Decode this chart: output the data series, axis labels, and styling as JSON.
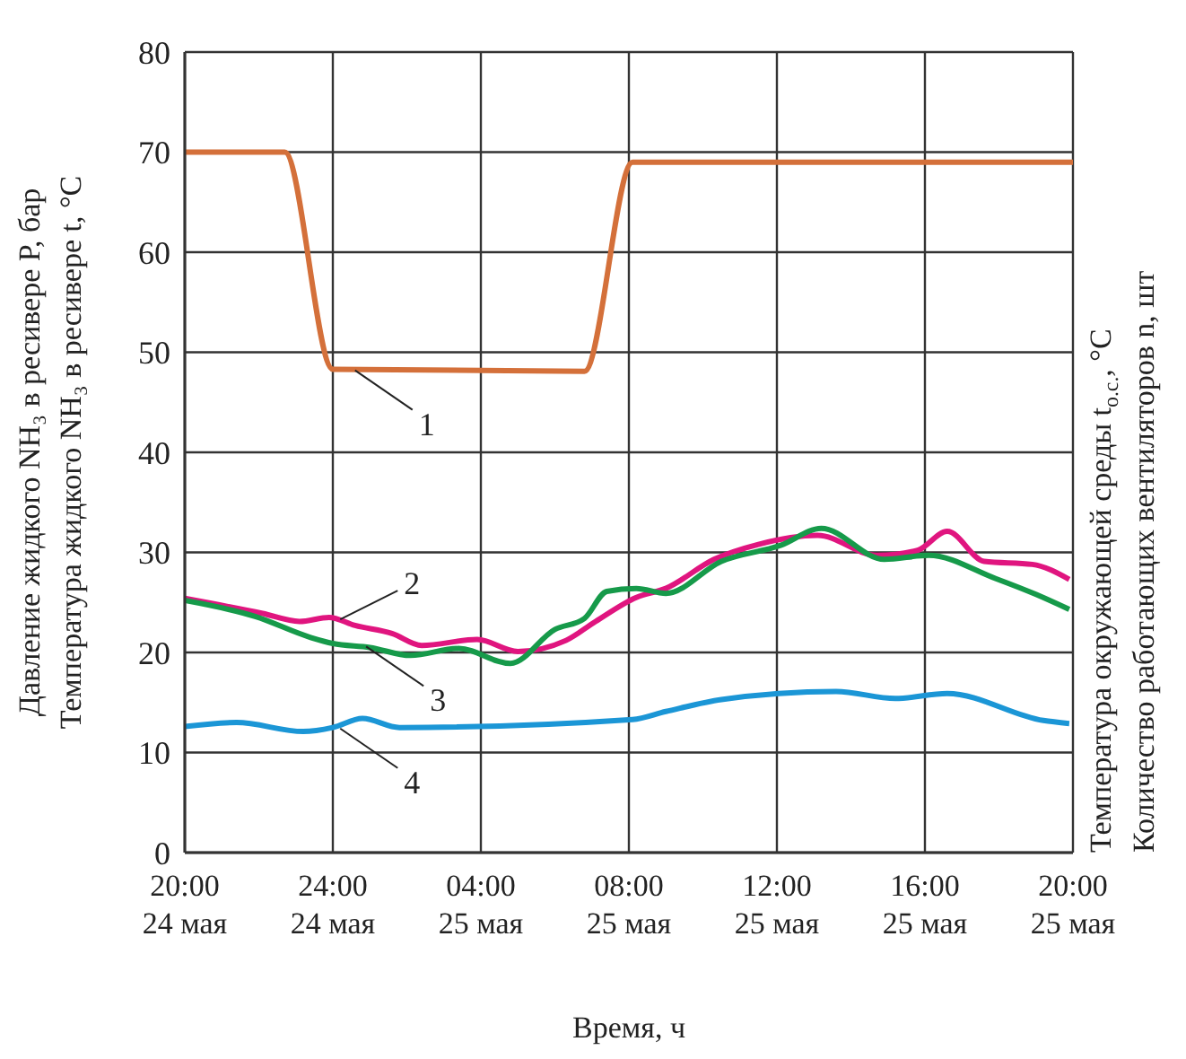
{
  "chart_data": {
    "type": "line",
    "xlabel": "Время, ч",
    "ylabel": "Давление жидкого NH₃ в ресивере P, бар\nТемпература жидкого NH₃ в ресивере t, °C",
    "y2label": "Температура окружающей среды t$_{о.с.}$, °C\nКоличество работающих вентиляторов n, шт",
    "xlim": [
      "--05-24T20:00",
      "--05-25T20:00"
    ],
    "xticks": [
      {
        "value": "--05-24T20:00",
        "label": "20:00\n24 мая"
      },
      {
        "value": "--05-25T00:00",
        "label": "24:00\n24 мая"
      },
      {
        "value": "--05-25T04:00",
        "label": "04:00\n25 мая"
      },
      {
        "value": "--05-25T08:00",
        "label": "08:00\n25 мая"
      },
      {
        "value": "--05-25T12:00",
        "label": "12:00\n25 мая"
      },
      {
        "value": "--05-25T16:00",
        "label": "16:00\n25 мая"
      },
      {
        "value": "--05-25T20:00",
        "label": "20:00\n25 мая"
      }
    ],
    "ylim": [
      0,
      80
    ],
    "yticks": [
      0,
      10,
      20,
      30,
      40,
      50,
      60,
      70,
      80
    ],
    "grid": true,
    "marker": "none",
    "line_style": "solid",
    "series": [
      {
        "color": "#d4703a",
        "x": [
          "--05-24T20:00",
          "--05-24T22:42",
          "--05-25T00:00",
          "--05-25T06:48",
          "--05-25T08:06",
          "--05-25T20:00"
        ],
        "values": [
          70,
          70,
          48.3,
          48.1,
          69,
          69
        ]
      },
      {
        "color": "#e0157f",
        "x": [
          "--05-24T20:00",
          "--05-24T22:06",
          "--05-24T23:06",
          "--05-24T23:54",
          "--05-25T00:36",
          "--05-25T01:36",
          "--05-25T02:24",
          "--05-25T03:54",
          "--05-25T05:00",
          "--05-25T06:18",
          "--05-25T07:06",
          "--05-25T08:12",
          "--05-25T09:00",
          "--05-25T10:18",
          "--05-25T11:30",
          "--05-25T13:06",
          "--05-25T14:42",
          "--05-25T15:48",
          "--05-25T16:36",
          "--05-25T17:36",
          "--05-25T18:54",
          "--05-25T19:54"
        ],
        "values": [
          25.4,
          23.9,
          23.1,
          23.5,
          22.7,
          21.9,
          20.7,
          21.3,
          20.1,
          21.2,
          23.1,
          25.5,
          26.4,
          29.3,
          30.8,
          31.7,
          29.7,
          30.2,
          32.1,
          29.1,
          28.8,
          27.3
        ]
      },
      {
        "color": "#169a4a",
        "x": [
          "--05-24T20:00",
          "--05-24T21:54",
          "--05-24T23:24",
          "--05-25T00:00",
          "--05-25T01:00",
          "--05-25T02:06",
          "--05-25T03:24",
          "--05-25T04:48",
          "--05-25T06:00",
          "--05-25T06:48",
          "--05-25T07:24",
          "--05-25T08:12",
          "--05-25T09:00",
          "--05-25T10:30",
          "--05-25T12:06",
          "--05-25T13:12",
          "--05-25T14:54",
          "--05-25T16:06",
          "--05-25T17:54",
          "--05-25T19:00",
          "--05-25T19:54"
        ],
        "values": [
          25.2,
          23.6,
          21.5,
          20.9,
          20.5,
          19.7,
          20.4,
          18.9,
          22.3,
          23.4,
          26.1,
          26.4,
          25.9,
          29.1,
          30.7,
          32.4,
          29.3,
          29.7,
          27.4,
          25.8,
          24.3
        ]
      },
      {
        "color": "#1b96d6",
        "x": [
          "--05-24T20:00",
          "--05-24T21:24",
          "--05-24T23:12",
          "--05-25T00:00",
          "--05-25T00:48",
          "--05-25T01:48",
          "--05-25T08:06",
          "--05-25T09:00",
          "--05-25T10:30",
          "--05-25T13:36",
          "--05-25T15:12",
          "--05-25T16:36",
          "--05-25T19:12",
          "--05-25T19:54"
        ],
        "values": [
          12.6,
          13.0,
          12.1,
          12.5,
          13.4,
          12.5,
          13.3,
          14.1,
          15.3,
          16.1,
          15.4,
          15.9,
          13.2,
          12.9
        ]
      }
    ],
    "annotations": [
      {
        "text": "1",
        "x": "--05-25T00:36",
        "y": 48.2
      },
      {
        "text": "2",
        "x": "--05-25T00:12",
        "y": 23.3
      },
      {
        "text": "3",
        "x": "--05-25T00:54",
        "y": 20.6
      },
      {
        "text": "4",
        "x": "--05-25T00:12",
        "y": 12.4
      }
    ]
  }
}
